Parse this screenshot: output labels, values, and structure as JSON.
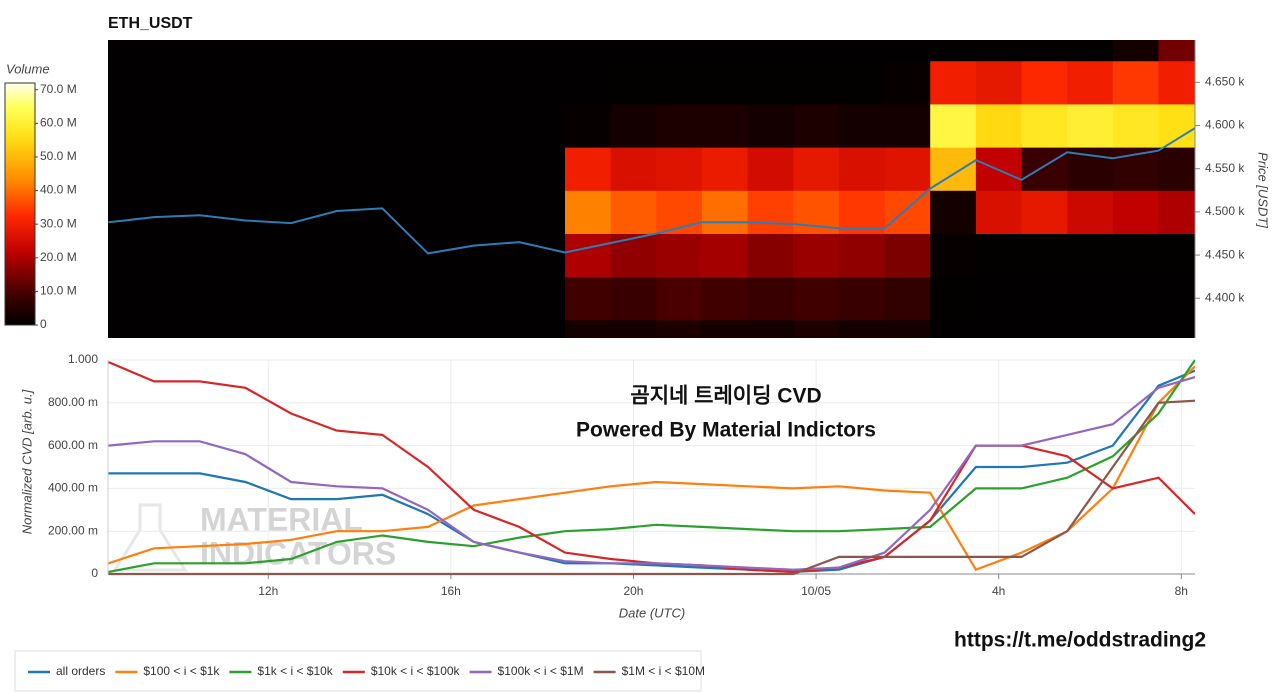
{
  "chart_data": [
    {
      "type": "heatmap",
      "title": "ETH_USDT",
      "colormap": "hot",
      "x": [
        8.5,
        9.5,
        10.5,
        11.5,
        12.5,
        13.5,
        14.5,
        15.5,
        16.5,
        17.5,
        18.5,
        19.5,
        20.5,
        21.5,
        22.5,
        23.5,
        24.5,
        25.5,
        26.5,
        27.5,
        28.5,
        29.5,
        30.5,
        31.5,
        32.5
      ],
      "y": [
        4325,
        4375,
        4425,
        4475,
        4525,
        4575,
        4625,
        4675,
        4725
      ],
      "z": [
        [
          0.3,
          0.3,
          0.3,
          0.3,
          0.3,
          0.3,
          0.3,
          0.3,
          0.3,
          0.3,
          3,
          3,
          4,
          3,
          3,
          4,
          3,
          3,
          0.3,
          0.3,
          0.3,
          0.3,
          0.3,
          0.3
        ],
        [
          0.3,
          0.3,
          0.3,
          0.3,
          0.3,
          0.3,
          0.3,
          0.3,
          0.3,
          0.3,
          9,
          8,
          10,
          9,
          8,
          9,
          8,
          7,
          0.5,
          0.3,
          0.3,
          0.3,
          0.3,
          0.3
        ],
        [
          0.3,
          0.3,
          0.3,
          0.3,
          0.3,
          0.3,
          0.3,
          0.3,
          0.3,
          0.3,
          20,
          17,
          18,
          19,
          16,
          18,
          17,
          15,
          1,
          0.5,
          0.5,
          0.5,
          0.5,
          0.5
        ],
        [
          0.3,
          0.3,
          0.3,
          0.3,
          0.3,
          0.3,
          0.3,
          0.3,
          0.3,
          0.3,
          42,
          38,
          36,
          40,
          35,
          37,
          34,
          36,
          3,
          26,
          28,
          24,
          22,
          20
        ],
        [
          0.3,
          0.3,
          0.3,
          0.3,
          0.3,
          0.3,
          0.3,
          0.3,
          0.3,
          0.3,
          30,
          26,
          27,
          29,
          25,
          28,
          26,
          27,
          50,
          22,
          8,
          6,
          7,
          6
        ],
        [
          0.3,
          0.3,
          0.3,
          0.3,
          0.3,
          0.3,
          0.3,
          0.3,
          0.3,
          0.3,
          1,
          3,
          4,
          4,
          3,
          4,
          3,
          3,
          62,
          55,
          58,
          60,
          58,
          56
        ],
        [
          0.3,
          0.3,
          0.3,
          0.3,
          0.3,
          0.3,
          0.3,
          0.3,
          0.3,
          0.3,
          0.3,
          0.5,
          0.5,
          0.5,
          0.5,
          0.5,
          0.5,
          1,
          30,
          28,
          32,
          30,
          34,
          30
        ],
        [
          0.3,
          0.3,
          0.3,
          0.3,
          0.3,
          0.3,
          0.3,
          0.3,
          0.3,
          0.3,
          0.3,
          0.3,
          0.3,
          0.3,
          0.3,
          0.3,
          0.3,
          0.3,
          0.5,
          0.5,
          0.5,
          0.5,
          3,
          14
        ]
      ],
      "xlim": [
        8.49,
        32.3
      ],
      "ylim": [
        4354,
        4699
      ],
      "ylabel": "Price [USDT]",
      "yticks": [
        {
          "value": 4400,
          "label": "4.400 k"
        },
        {
          "value": 4450,
          "label": "4.450 k"
        },
        {
          "value": 4500,
          "label": "4.500 k"
        },
        {
          "value": 4550,
          "label": "4.550 k"
        },
        {
          "value": 4600,
          "label": "4.600 k"
        },
        {
          "value": 4650,
          "label": "4.650 k"
        }
      ],
      "colorbar": {
        "title": "Volume",
        "lim": [
          0,
          72
        ],
        "ticks": [
          0,
          {
            "value": 10,
            "label": "10.0 M"
          },
          {
            "value": 20,
            "label": "20.0 M"
          },
          {
            "value": 30,
            "label": "30.0 M"
          },
          {
            "value": 40,
            "label": "40.0 M"
          },
          {
            "value": 50,
            "label": "50.0 M"
          },
          {
            "value": 60,
            "label": "60.0 M"
          },
          {
            "value": 70,
            "label": "70.0 M"
          }
        ]
      },
      "line": {
        "color": "#2f7bb6",
        "x": [
          8.5,
          9.5,
          10.5,
          11.5,
          12.5,
          13.5,
          14.5,
          15.5,
          16.5,
          17.5,
          18.5,
          19.5,
          20.5,
          21.5,
          22.5,
          23.5,
          24.5,
          25.5,
          26.5,
          27.5,
          28.5,
          29.5,
          30.5,
          31.5,
          32.3
        ],
        "values": [
          4488,
          4494,
          4496,
          4490,
          4487,
          4501,
          4504,
          4452,
          4461,
          4465,
          4453,
          4464,
          4475,
          4488,
          4488,
          4486,
          4481,
          4481,
          4527,
          4560,
          4537,
          4569,
          4562,
          4571,
          4597
        ]
      }
    },
    {
      "type": "line",
      "xlabel": "Date (UTC)",
      "ylabel": "Normalized CVD [arb. u.]",
      "grid": true,
      "xlim": [
        8.49,
        32.3
      ],
      "ylim": [
        0,
        1
      ],
      "xticks": [
        {
          "value": 12,
          "label": "12h"
        },
        {
          "value": 16,
          "label": "16h"
        },
        {
          "value": 20,
          "label": "20h"
        },
        {
          "value": 24,
          "label": "10/05"
        },
        {
          "value": 28,
          "label": "4h"
        },
        {
          "value": 32,
          "label": "8h"
        }
      ],
      "yticks": [
        0,
        {
          "value": 0.2,
          "label": "200.00 m"
        },
        {
          "value": 0.4,
          "label": "400.00 m"
        },
        {
          "value": 0.6,
          "label": "600.00 m"
        },
        {
          "value": 0.8,
          "label": "800.00 m"
        },
        {
          "value": 1,
          "label": "1.000"
        }
      ],
      "x": [
        8.5,
        9.5,
        10.5,
        11.5,
        12.5,
        13.5,
        14.5,
        15.5,
        16.5,
        17.5,
        18.5,
        19.5,
        20.5,
        21.5,
        22.5,
        23.5,
        24.5,
        25.5,
        26.5,
        27.5,
        28.5,
        29.5,
        30.5,
        31.5,
        32.3
      ],
      "series": [
        {
          "name": "all orders",
          "color": "#1f77b4",
          "values": [
            0.47,
            0.47,
            0.47,
            0.43,
            0.35,
            0.35,
            0.37,
            0.28,
            0.15,
            0.1,
            0.05,
            0.05,
            0.04,
            0.03,
            0.02,
            0.01,
            0.02,
            0.08,
            0.25,
            0.5,
            0.5,
            0.52,
            0.6,
            0.88,
            0.95
          ]
        },
        {
          "name": "$100 < i < $1k",
          "color": "#ff7f0e",
          "values": [
            0.05,
            0.12,
            0.13,
            0.14,
            0.16,
            0.2,
            0.2,
            0.22,
            0.32,
            0.35,
            0.38,
            0.41,
            0.43,
            0.42,
            0.41,
            0.4,
            0.41,
            0.39,
            0.38,
            0.02,
            0.1,
            0.2,
            0.4,
            0.8,
            0.97
          ]
        },
        {
          "name": "$1k < i < $10k",
          "color": "#2ca02c",
          "values": [
            0.01,
            0.05,
            0.05,
            0.05,
            0.07,
            0.15,
            0.18,
            0.15,
            0.13,
            0.17,
            0.2,
            0.21,
            0.23,
            0.22,
            0.21,
            0.2,
            0.2,
            0.21,
            0.22,
            0.4,
            0.4,
            0.45,
            0.55,
            0.75,
            1.0
          ]
        },
        {
          "name": "$10k < i < $100k",
          "color": "#d62728",
          "values": [
            0.99,
            0.9,
            0.9,
            0.87,
            0.75,
            0.67,
            0.65,
            0.5,
            0.3,
            0.22,
            0.1,
            0.07,
            0.05,
            0.04,
            0.02,
            0.01,
            0.03,
            0.08,
            0.25,
            0.6,
            0.6,
            0.55,
            0.4,
            0.45,
            0.28
          ]
        },
        {
          "name": "$100k < i < $1M",
          "color": "#9467bd",
          "values": [
            0.6,
            0.62,
            0.62,
            0.56,
            0.43,
            0.41,
            0.4,
            0.3,
            0.15,
            0.1,
            0.06,
            0.05,
            0.05,
            0.04,
            0.03,
            0.02,
            0.03,
            0.1,
            0.3,
            0.6,
            0.6,
            0.65,
            0.7,
            0.87,
            0.92
          ]
        },
        {
          "name": "$1M < i < $10M",
          "color": "#8c564b",
          "values": [
            0,
            0,
            0,
            0,
            0,
            0,
            0,
            0,
            0,
            0,
            0,
            0,
            0,
            0,
            0,
            0,
            0.08,
            0.08,
            0.08,
            0.08,
            0.08,
            0.2,
            0.5,
            0.8,
            0.81
          ]
        }
      ],
      "annotations": [
        "곰지네 트레이딩 CVD",
        "Powered By Material Indictors"
      ],
      "watermark": [
        "MATERIAL",
        "INDICATORS"
      ],
      "footer": "https://t.me/oddstrading2"
    }
  ]
}
